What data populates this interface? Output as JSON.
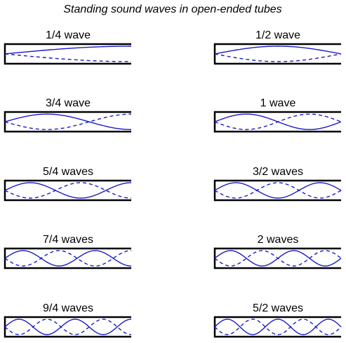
{
  "title": "Standing sound waves in open-ended tubes",
  "colors": {
    "wave": "#1a1acc",
    "tube": "#000000",
    "background": "#ffffff"
  },
  "tubes": [
    {
      "label": "1/4 wave",
      "quarter_waves": 1
    },
    {
      "label": "1/2 wave",
      "quarter_waves": 2
    },
    {
      "label": "3/4 wave",
      "quarter_waves": 3
    },
    {
      "label": "1 wave",
      "quarter_waves": 4
    },
    {
      "label": "5/4 waves",
      "quarter_waves": 5
    },
    {
      "label": "3/2 waves",
      "quarter_waves": 6
    },
    {
      "label": "7/4 waves",
      "quarter_waves": 7
    },
    {
      "label": "2 waves",
      "quarter_waves": 8
    },
    {
      "label": "9/4 waves",
      "quarter_waves": 9
    },
    {
      "label": "5/2 waves",
      "quarter_waves": 10
    }
  ]
}
